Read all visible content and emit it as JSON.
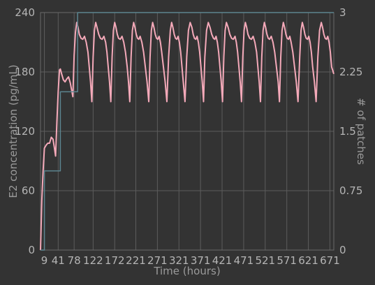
{
  "chart_data": {
    "type": "line",
    "xlabel": "Time (hours)",
    "ylabel": "E2 concentration (pg/mL)",
    "y2label": "# of patches",
    "xlim": [
      0,
      680
    ],
    "ylim": [
      0,
      240
    ],
    "y2lim": [
      0,
      3
    ],
    "x_ticks": [
      9,
      41,
      78,
      122,
      172,
      221,
      271,
      321,
      371,
      421,
      471,
      521,
      571,
      621,
      671
    ],
    "x_tick_labels": [
      "9",
      "41",
      "78",
      "122",
      "172",
      "221",
      "271",
      "321",
      "371",
      "421",
      "471",
      "521",
      "571",
      "621",
      "671"
    ],
    "y_ticks": [
      0,
      60,
      120,
      180,
      240
    ],
    "y_tick_labels": [
      "0",
      "60",
      "120",
      "180",
      "240"
    ],
    "y2_ticks": [
      0,
      0.75,
      1.5,
      2.25,
      3
    ],
    "y2_tick_labels": [
      "0",
      "0.75",
      "1.5",
      "2.25",
      "3"
    ],
    "grid": true,
    "colors": {
      "background": "#333333",
      "e2_line": "#f4a9b9",
      "patches_line": "#5c8590",
      "grid": "#5c5c5c"
    },
    "series": [
      {
        "axis": "left",
        "color": "#f4a9b9",
        "x": [
          0,
          3,
          6,
          9,
          13,
          17,
          21,
          25,
          29,
          32,
          35,
          38,
          41,
          44,
          46,
          49,
          53,
          57,
          61,
          65,
          69,
          72,
          75,
          78,
          81,
          84,
          87,
          90,
          94,
          98,
          102,
          106,
          110,
          113,
          116,
          119,
          122,
          125,
          128,
          131,
          135,
          139,
          143,
          147,
          151,
          154,
          157,
          160,
          163,
          166,
          169,
          172,
          175,
          178,
          181,
          185,
          189,
          193,
          197,
          201,
          204,
          207,
          210,
          213,
          216,
          219,
          222,
          225,
          228,
          231,
          235,
          239,
          243,
          247,
          251,
          254,
          257,
          260,
          263,
          266,
          269,
          272,
          275,
          278,
          281,
          285,
          289,
          293,
          297,
          301,
          304,
          307,
          310,
          313,
          316,
          319,
          322,
          325,
          328,
          331,
          335,
          339,
          343,
          347,
          351,
          354,
          357,
          360,
          363,
          366,
          369,
          372,
          375,
          378,
          381,
          385,
          389,
          393,
          397,
          401,
          404,
          407,
          410,
          413,
          416,
          419,
          422,
          425,
          428,
          431,
          435,
          439,
          443,
          447,
          451,
          454,
          457,
          460,
          463,
          466,
          469,
          472,
          475,
          478,
          481,
          485,
          489,
          493,
          497,
          501,
          504,
          507,
          510,
          513,
          516,
          519,
          522,
          525,
          528,
          531,
          535,
          539,
          543,
          547,
          551,
          554,
          557,
          560,
          563,
          566,
          569,
          572,
          575,
          578,
          581,
          585,
          589,
          593,
          597,
          601,
          604,
          607,
          610,
          613,
          616,
          619,
          622,
          625,
          628,
          631,
          635,
          639,
          643,
          647,
          651,
          654,
          657,
          660,
          663,
          666,
          669,
          672,
          675,
          680
        ],
        "y": [
          0,
          50,
          80,
          103,
          106,
          108,
          108,
          114,
          112,
          104,
          95,
          130,
          160,
          182,
          183,
          178,
          172,
          170,
          173,
          175,
          169,
          162,
          155,
          197,
          220,
          230,
          225,
          218,
          214,
          213,
          216,
          210,
          200,
          185,
          170,
          150,
          195,
          222,
          230,
          225,
          218,
          214,
          213,
          216,
          210,
          200,
          185,
          170,
          150,
          195,
          222,
          230,
          225,
          218,
          214,
          213,
          216,
          210,
          200,
          185,
          170,
          150,
          195,
          222,
          230,
          225,
          218,
          214,
          213,
          216,
          210,
          200,
          185,
          170,
          150,
          195,
          222,
          230,
          225,
          218,
          214,
          213,
          216,
          210,
          200,
          185,
          170,
          150,
          195,
          222,
          230,
          225,
          218,
          214,
          213,
          216,
          210,
          200,
          185,
          170,
          150,
          195,
          222,
          230,
          225,
          218,
          214,
          213,
          216,
          210,
          200,
          185,
          170,
          150,
          195,
          222,
          230,
          225,
          218,
          214,
          213,
          216,
          210,
          200,
          185,
          170,
          150,
          195,
          222,
          230,
          225,
          218,
          214,
          213,
          216,
          210,
          200,
          185,
          170,
          150,
          195,
          222,
          230,
          225,
          218,
          214,
          213,
          216,
          210,
          200,
          185,
          170,
          150,
          195,
          222,
          230,
          225,
          218,
          214,
          213,
          216,
          210,
          200,
          185,
          170,
          150,
          195,
          222,
          230,
          225,
          218,
          214,
          213,
          216,
          210,
          200,
          185,
          170,
          150,
          195,
          222,
          230,
          225,
          218,
          214,
          213,
          216,
          210,
          200,
          185,
          170,
          150,
          195,
          222,
          230,
          225,
          218,
          214,
          213,
          216,
          210,
          200,
          185,
          178
        ]
      },
      {
        "axis": "right",
        "color": "#5c8590",
        "x": [
          0,
          9,
          9,
          41,
          41,
          46,
          46,
          78,
          78,
          86,
          86,
          680
        ],
        "y": [
          0,
          0,
          1,
          1,
          1,
          1,
          2,
          2,
          2,
          2,
          3,
          3
        ]
      }
    ]
  }
}
